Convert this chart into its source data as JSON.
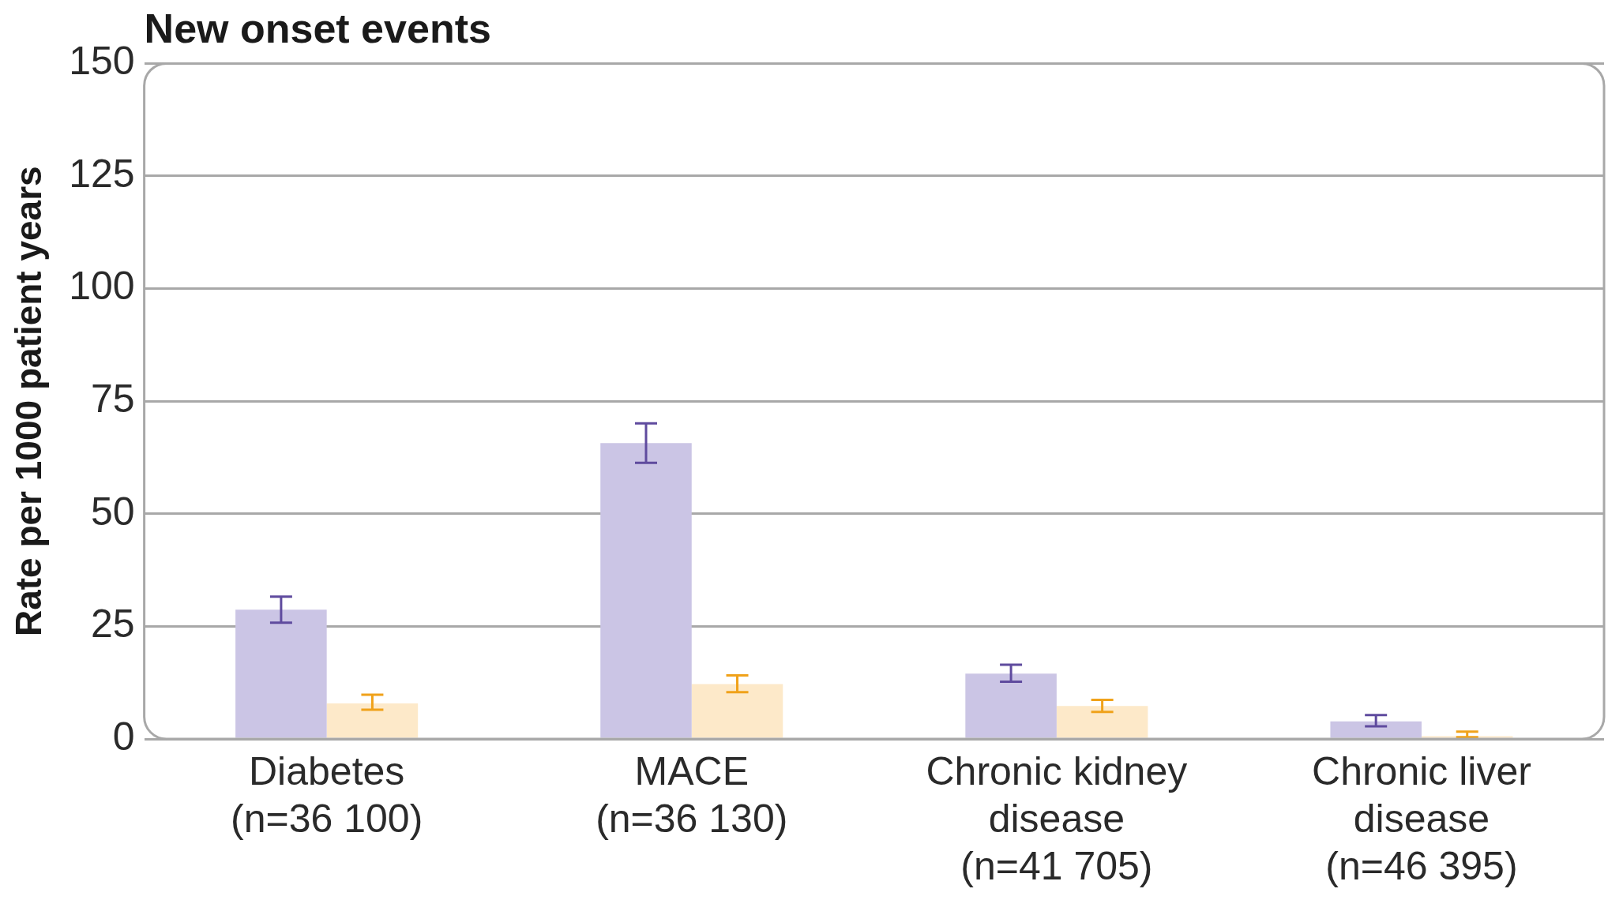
{
  "chart_data": {
    "type": "bar",
    "title": "New onset events",
    "ylabel": "Rate per 1000 patient years",
    "categories": [
      "Diabetes (n=36 100)",
      "MACE (n=36 130)",
      "Chronic kidney disease (n=41 705)",
      "Chronic liver disease (n=46 395)"
    ],
    "series": [
      {
        "color": "#cbc5e5",
        "values": [
          28.7,
          65.7,
          14.5,
          3.9
        ],
        "errors": [
          [
            25.8,
            31.6
          ],
          [
            61.3,
            70.1
          ],
          [
            12.7,
            16.5
          ],
          [
            2.8,
            5.3
          ]
        ]
      },
      {
        "color": "#fde9c9",
        "values": [
          7.9,
          12.2,
          7.3,
          0.6
        ],
        "errors": [
          [
            6.5,
            9.8
          ],
          [
            10.4,
            14.1
          ],
          [
            6.0,
            8.7
          ],
          [
            0.4,
            1.6
          ]
        ]
      }
    ],
    "ylim": [
      0,
      150
    ],
    "yticks": [
      0,
      25,
      50,
      75,
      100,
      125,
      150
    ],
    "grid": "y",
    "legend": false
  }
}
